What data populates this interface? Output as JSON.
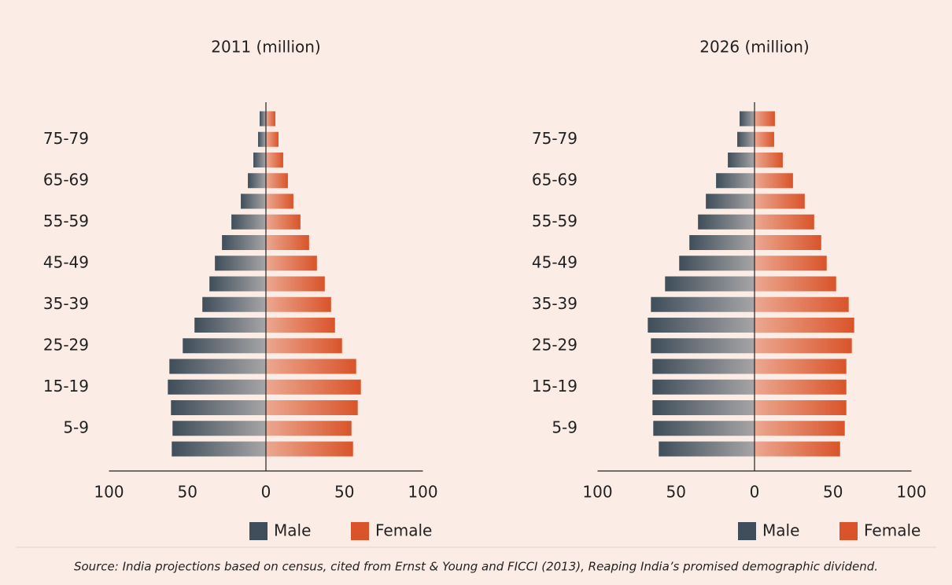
{
  "chart_data": [
    {
      "type": "pyramid",
      "title": "2011 (million)",
      "categories": [
        null,
        "5-9",
        null,
        "15-19",
        null,
        "25-29",
        null,
        "35-39",
        null,
        "45-49",
        null,
        "55-59",
        null,
        "65-69",
        null,
        "75-79",
        null
      ],
      "series": [
        {
          "name": "Male",
          "color": "#3f4e5a",
          "values": [
            -60,
            -59.5,
            -60.5,
            -62.5,
            -61.5,
            -53,
            -45.5,
            -40.5,
            -36,
            -32.5,
            -28,
            -22,
            -16,
            -11.5,
            -8,
            -5,
            -4
          ]
        },
        {
          "name": "Female",
          "color": "#d9542a",
          "values": [
            55.5,
            54.5,
            58.5,
            60.5,
            57.5,
            48.5,
            44,
            41.5,
            37.5,
            32.5,
            27.5,
            22,
            17.5,
            14,
            11,
            8,
            6
          ]
        }
      ],
      "xlim": [
        -100,
        100
      ],
      "xticks": [
        {
          "value": -100,
          "label": "100"
        },
        {
          "value": -50,
          "label": "50"
        },
        0,
        50,
        100
      ]
    },
    {
      "type": "pyramid",
      "title": "2026 (million)",
      "categories": [
        null,
        "5-9",
        null,
        "15-19",
        null,
        "25-29",
        null,
        "35-39",
        null,
        "45-49",
        null,
        "55-59",
        null,
        "65-69",
        null,
        "75-79",
        null
      ],
      "series": [
        {
          "name": "Male",
          "color": "#3f4e5a",
          "values": [
            -61,
            -64.5,
            -65,
            -65,
            -65,
            -66,
            -68,
            -66,
            -57,
            -48,
            -41.5,
            -36,
            -31,
            -24.5,
            -17,
            -11,
            -9.5
          ]
        },
        {
          "name": "Female",
          "color": "#d9542a",
          "values": [
            54.5,
            57.5,
            58.5,
            58.5,
            58.5,
            62,
            63.5,
            60,
            52,
            46,
            42.5,
            38,
            32,
            24.5,
            18,
            12.5,
            13
          ]
        }
      ],
      "xlim": [
        -100,
        100
      ],
      "xticks": [
        {
          "value": -100,
          "label": "100"
        },
        {
          "value": -50,
          "label": "50"
        },
        0,
        50,
        100
      ]
    }
  ],
  "source": "Source: India projections based on census, cited from Ernst & Young and FICCI (2013), Reaping India’s promised demographic dividend."
}
